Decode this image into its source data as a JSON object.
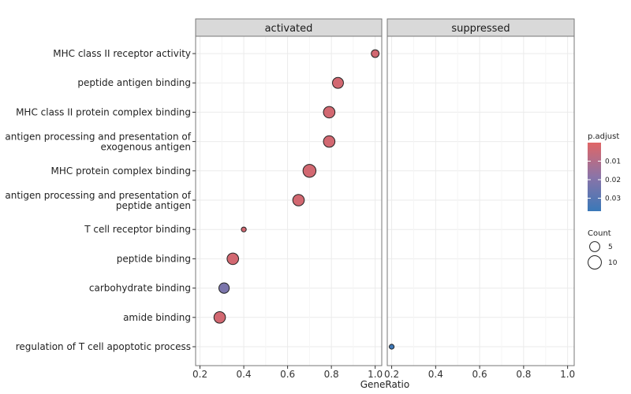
{
  "chart_data": {
    "type": "scatter",
    "subtype": "dot-plot-faceted",
    "xlabel": "GeneRatio",
    "xlim": [
      0.18,
      1.03
    ],
    "xticks": [
      "0.2",
      "0.4",
      "0.6",
      "0.8",
      "1.0"
    ],
    "facets": [
      "activated",
      "suppressed"
    ],
    "categories": [
      [
        "MHC class II receptor activity"
      ],
      [
        "peptide antigen binding"
      ],
      [
        "MHC class II protein complex binding"
      ],
      [
        "antigen processing and presentation of",
        "exogenous antigen"
      ],
      [
        "MHC protein complex binding"
      ],
      [
        "antigen processing and presentation of",
        "peptide antigen"
      ],
      [
        "T cell receptor binding"
      ],
      [
        "peptide binding"
      ],
      [
        "carbohydrate binding"
      ],
      [
        "amide binding"
      ],
      [
        "regulation of T cell apoptotic process"
      ]
    ],
    "points": [
      {
        "facet": "activated",
        "category": 0,
        "gene_ratio": 1.0,
        "count": 5,
        "p_adjust": 0.003
      },
      {
        "facet": "activated",
        "category": 1,
        "gene_ratio": 0.83,
        "count": 10,
        "p_adjust": 0.003
      },
      {
        "facet": "activated",
        "category": 2,
        "gene_ratio": 0.79,
        "count": 11,
        "p_adjust": 0.003
      },
      {
        "facet": "activated",
        "category": 3,
        "gene_ratio": 0.79,
        "count": 11,
        "p_adjust": 0.003
      },
      {
        "facet": "activated",
        "category": 4,
        "gene_ratio": 0.7,
        "count": 14,
        "p_adjust": 0.003
      },
      {
        "facet": "activated",
        "category": 5,
        "gene_ratio": 0.65,
        "count": 11,
        "p_adjust": 0.003
      },
      {
        "facet": "activated",
        "category": 6,
        "gene_ratio": 0.4,
        "count": 2,
        "p_adjust": 0.003
      },
      {
        "facet": "activated",
        "category": 7,
        "gene_ratio": 0.35,
        "count": 11,
        "p_adjust": 0.003
      },
      {
        "facet": "activated",
        "category": 8,
        "gene_ratio": 0.31,
        "count": 9,
        "p_adjust": 0.022
      },
      {
        "facet": "activated",
        "category": 9,
        "gene_ratio": 0.29,
        "count": 11,
        "p_adjust": 0.003
      },
      {
        "facet": "suppressed",
        "category": 10,
        "gene_ratio": 0.2,
        "count": 2,
        "p_adjust": 0.036
      }
    ],
    "legend_color": {
      "title": "p.adjust",
      "ticks": [
        "0.01",
        "0.02",
        "0.03"
      ],
      "tick_values": [
        0.01,
        0.02,
        0.03
      ],
      "range": [
        0.0,
        0.037
      ],
      "low_color": "#e06666",
      "mid_color": "#8a74a8",
      "high_color": "#3a78b8"
    },
    "legend_size": {
      "title": "Count",
      "entries": [
        "5",
        "10"
      ],
      "entry_values": [
        5,
        10
      ]
    },
    "grid": true,
    "legend_position": "right"
  }
}
